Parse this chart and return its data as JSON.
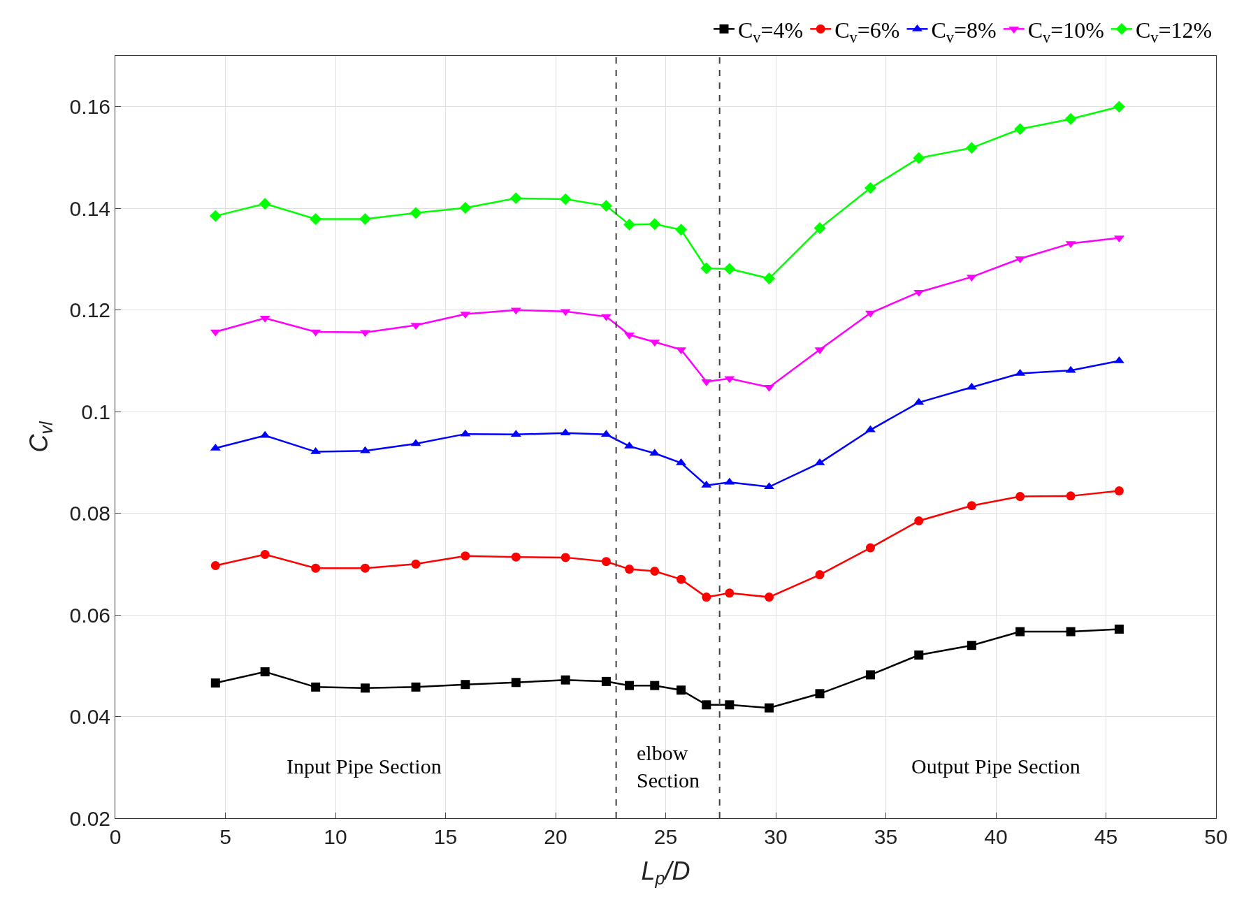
{
  "chart_data": {
    "type": "line",
    "xlabel": "L$_{p}$/D",
    "ylabel": "C$_{vl}$",
    "x": [
      4.55,
      6.8,
      9.1,
      11.35,
      13.65,
      15.9,
      18.2,
      20.45,
      22.3,
      23.35,
      24.5,
      25.7,
      26.85,
      27.9,
      29.7,
      32.0,
      34.3,
      36.5,
      38.9,
      41.1,
      43.4,
      45.6
    ],
    "series": [
      {
        "name": "C$_{v}$=4%",
        "color": "#000000",
        "marker": "square",
        "values": [
          0.0466,
          0.0488,
          0.0458,
          0.0456,
          0.0458,
          0.0463,
          0.0467,
          0.0472,
          0.0469,
          0.0461,
          0.0461,
          0.0452,
          0.0423,
          0.0423,
          0.0417,
          0.0445,
          0.0482,
          0.0521,
          0.054,
          0.0567,
          0.0567,
          0.0572
        ]
      },
      {
        "name": "C$_{v}$=6%",
        "color": "#ff0000",
        "marker": "circle",
        "values": [
          0.0697,
          0.0719,
          0.0692,
          0.0692,
          0.07,
          0.0716,
          0.0714,
          0.0713,
          0.0705,
          0.069,
          0.0686,
          0.067,
          0.0635,
          0.0643,
          0.0635,
          0.0679,
          0.0732,
          0.0785,
          0.0815,
          0.0833,
          0.0834,
          0.0844
        ]
      },
      {
        "name": "C$_{v}$=8%",
        "color": "#0000ff",
        "marker": "triangle",
        "values": [
          0.0928,
          0.0953,
          0.0921,
          0.0923,
          0.0937,
          0.0956,
          0.0955,
          0.0958,
          0.0955,
          0.0932,
          0.0918,
          0.0899,
          0.0855,
          0.0861,
          0.0852,
          0.0899,
          0.0964,
          0.1018,
          0.1048,
          0.1075,
          0.1081,
          0.11
        ]
      },
      {
        "name": "C$_{v}$=10%",
        "color": "#ff00ff",
        "marker": "triangle-down",
        "values": [
          0.1157,
          0.1184,
          0.1157,
          0.1156,
          0.117,
          0.1192,
          0.12,
          0.1197,
          0.1187,
          0.1151,
          0.1137,
          0.1122,
          0.1059,
          0.1065,
          0.1048,
          0.1122,
          0.1194,
          0.1235,
          0.1265,
          0.1301,
          0.1331,
          0.1342
        ]
      },
      {
        "name": "C$_{v}$=12%",
        "color": "#00ff00",
        "marker": "diamond",
        "values": [
          0.1385,
          0.1409,
          0.1379,
          0.1379,
          0.1391,
          0.1401,
          0.142,
          0.1418,
          0.1405,
          0.1368,
          0.1369,
          0.1358,
          0.1282,
          0.1281,
          0.1262,
          0.1361,
          0.144,
          0.1499,
          0.1519,
          0.1556,
          0.1576,
          0.16
        ]
      }
    ],
    "xlim": [
      0,
      50
    ],
    "xticks": [
      0,
      5,
      10,
      15,
      20,
      25,
      30,
      35,
      40,
      45,
      50
    ],
    "ylim": [
      0.02,
      0.17
    ],
    "yticks": [
      {
        "value": 0.02,
        "label": "0.02"
      },
      {
        "value": 0.04,
        "label": "0.04"
      },
      {
        "value": 0.06,
        "label": "0.06"
      },
      {
        "value": 0.08,
        "label": "0.08"
      },
      {
        "value": 0.1,
        "label": "0.1"
      },
      {
        "value": 0.12,
        "label": "0.12"
      },
      {
        "value": 0.14,
        "label": "0.14"
      },
      {
        "value": 0.16,
        "label": "0.16"
      }
    ],
    "ref_lines": [
      {
        "axis": "x",
        "value": 22.75,
        "line_style": "dashed",
        "color": "#404040"
      },
      {
        "axis": "x",
        "value": 27.45,
        "line_style": "dashed",
        "color": "#404040"
      }
    ],
    "annotations": [
      "Input Pipe Section",
      "elbow\nSection",
      "Output Pipe Section"
    ],
    "grid": true,
    "legend": "top",
    "line_style": "solid"
  }
}
